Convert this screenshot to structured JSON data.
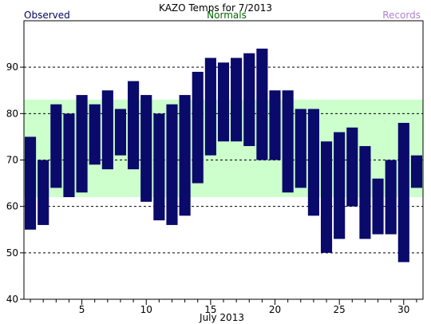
{
  "chart_data": {
    "type": "bar",
    "title": "KAZO Temps for 7/2013",
    "legend": {
      "observed": "Observed",
      "normals": "Normals",
      "records": "Records"
    },
    "xlabel": "July 2013",
    "ylabel": "",
    "x_ticks": [
      "5",
      "10",
      "15",
      "20",
      "25",
      "30"
    ],
    "y_ticks": [
      "40",
      "50",
      "60",
      "70",
      "80",
      "90"
    ],
    "xlim": [
      0.5,
      31.5
    ],
    "ylim": [
      40,
      100
    ],
    "grid": true,
    "grid_lines": [
      50,
      60,
      70,
      80,
      90
    ],
    "normals_band": {
      "low": 62,
      "high": 83
    },
    "days": [
      1,
      2,
      3,
      4,
      5,
      6,
      7,
      8,
      9,
      10,
      11,
      12,
      13,
      14,
      15,
      16,
      17,
      18,
      19,
      20,
      21,
      22,
      23,
      24,
      25,
      26,
      27,
      28,
      29,
      30,
      31
    ],
    "series": [
      {
        "name": "Observed",
        "kind": "range",
        "low": [
          55,
          56,
          64,
          62,
          63,
          69,
          68,
          71,
          68,
          61,
          57,
          56,
          58,
          65,
          71,
          74,
          74,
          73,
          70,
          70,
          63,
          64,
          58,
          50,
          53,
          60,
          53,
          54,
          54,
          48,
          64
        ],
        "high": [
          75,
          70,
          82,
          80,
          84,
          82,
          85,
          81,
          87,
          84,
          80,
          82,
          84,
          89,
          92,
          91,
          92,
          93,
          94,
          85,
          85,
          81,
          81,
          74,
          76,
          77,
          73,
          66,
          70,
          78,
          71
        ]
      }
    ]
  },
  "colors": {
    "observed": "#0a0a6b",
    "normals_band": "#ccffcc",
    "observed_label": "#000066",
    "normals_label": "#006600",
    "records_label": "#b080d0",
    "axis": "#000000",
    "grid": "#000000"
  }
}
